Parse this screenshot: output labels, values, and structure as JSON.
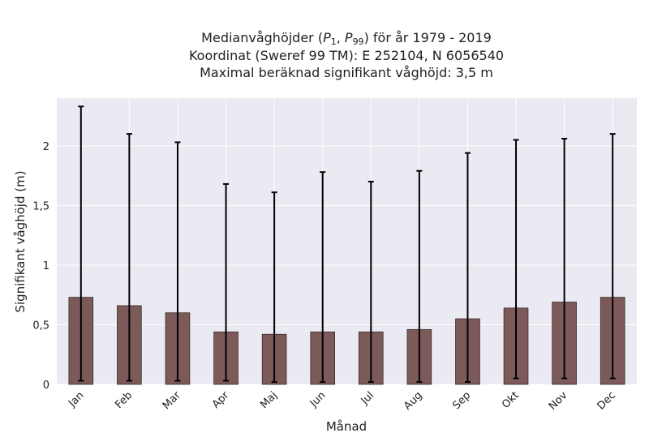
{
  "chart_data": {
    "type": "bar",
    "title": {
      "line1_prefix": "Medianvåghöjder (",
      "p1": "P",
      "p1_sub": "1",
      "comma": ", ",
      "p99": "P",
      "p99_sub": "99",
      "line1_suffix": ") för år 1979 - 2019",
      "line2": "Koordinat (Sweref 99 TM): E 252104, N 6056540",
      "line3": "Maximal beräknad signifikant våghöjd: 3,5 m"
    },
    "xlabel": "Månad",
    "ylabel": "Signifikant våghöjd (m)",
    "ylim": [
      0,
      2.4
    ],
    "yticks": [
      0,
      0.5,
      1,
      1.5,
      2
    ],
    "ytick_labels": [
      "0",
      "0,5",
      "1",
      "1,5",
      "2"
    ],
    "grid": true,
    "categories": [
      "Jan",
      "Feb",
      "Mar",
      "Apr",
      "Maj",
      "Jun",
      "Jul",
      "Aug",
      "Sep",
      "Okt",
      "Nov",
      "Dec"
    ],
    "values": [
      0.73,
      0.66,
      0.6,
      0.44,
      0.42,
      0.44,
      0.44,
      0.46,
      0.55,
      0.64,
      0.69,
      0.73
    ],
    "p1": [
      0.03,
      0.03,
      0.03,
      0.03,
      0.02,
      0.02,
      0.02,
      0.02,
      0.02,
      0.05,
      0.05,
      0.05
    ],
    "p99": [
      2.33,
      2.1,
      2.03,
      1.68,
      1.61,
      1.78,
      1.7,
      1.79,
      1.94,
      2.05,
      2.06,
      2.1
    ],
    "colors": {
      "bar": "#7d5a5a",
      "bar_edge": "#3a2a2a",
      "error": "#000000",
      "plot_bg": "#eaeaf2",
      "grid": "#ffffff"
    }
  }
}
